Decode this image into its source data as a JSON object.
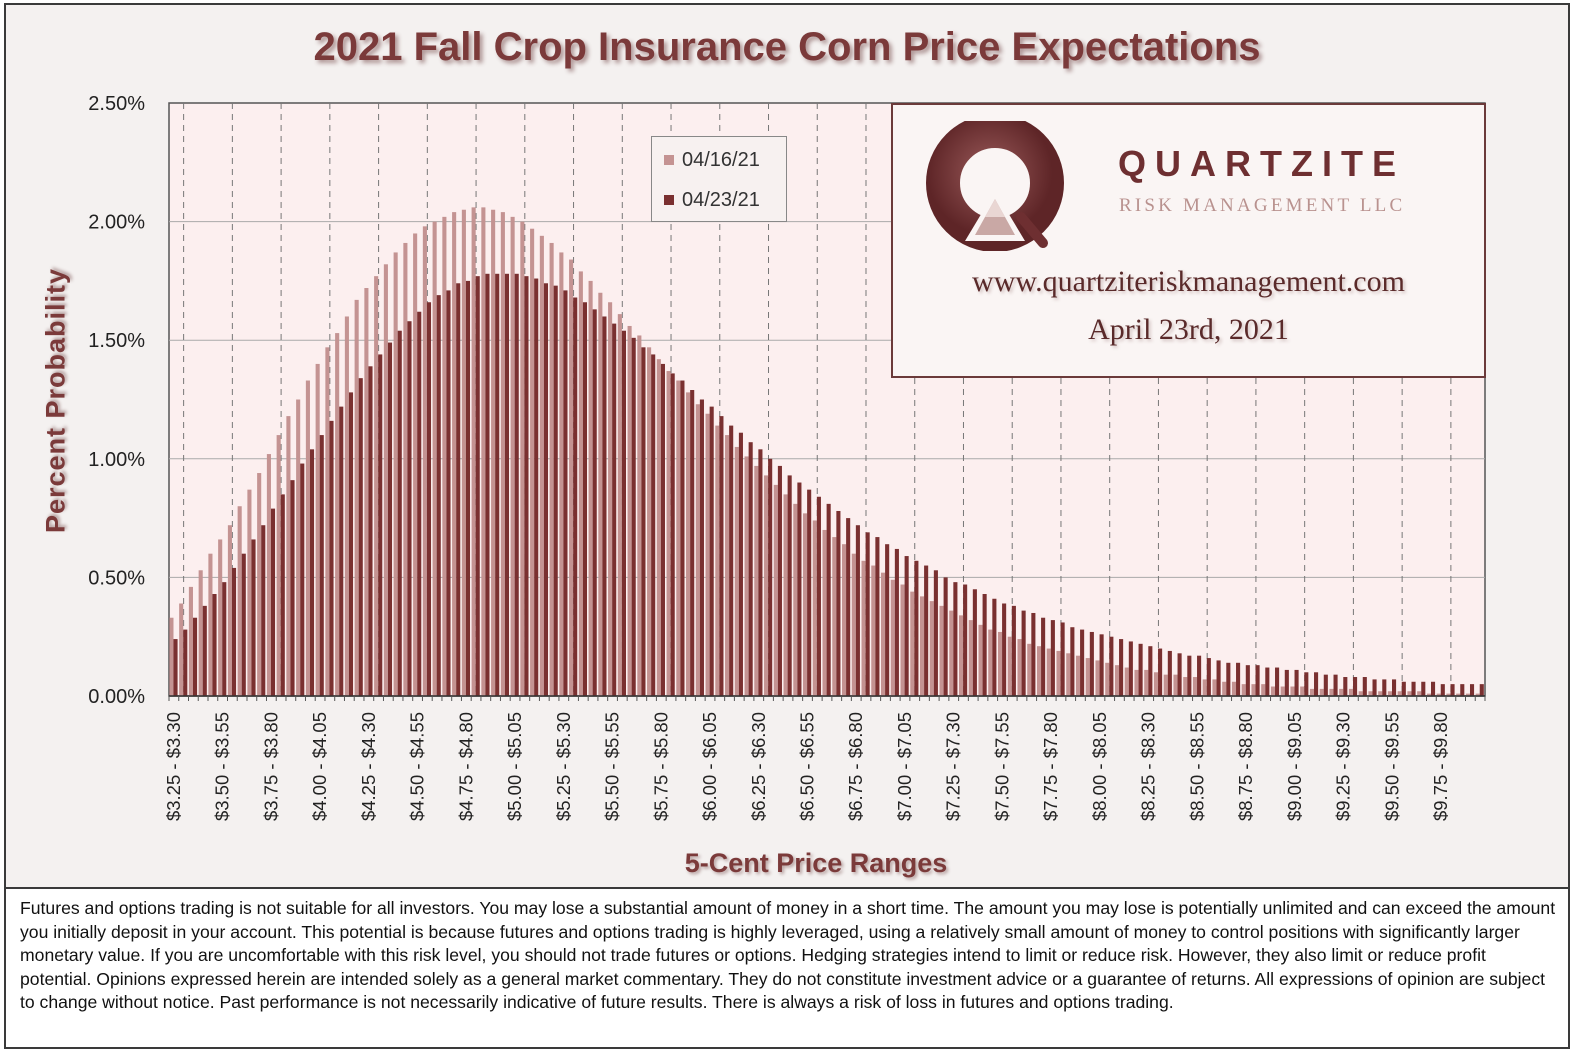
{
  "chart_data": {
    "type": "bar",
    "title": "2021 Fall Crop Insurance Corn Price Expectations",
    "xlabel": "5-Cent Price Ranges",
    "ylabel": "Percent Probability",
    "ylim": [
      0,
      2.5
    ],
    "y_ticks": [
      "0.00%",
      "0.50%",
      "1.00%",
      "1.50%",
      "2.00%",
      "2.50%"
    ],
    "x_tick_labels": [
      "$3.25 - $3.30",
      "$3.50 - $3.55",
      "$3.75 - $3.80",
      "$4.00 - $4.05",
      "$4.25 - $4.30",
      "$4.50 - $4.55",
      "$4.75 - $4.80",
      "$5.00 - $5.05",
      "$5.25 - $5.30",
      "$5.50 - $5.55",
      "$5.75 - $5.80",
      "$6.00 - $6.05",
      "$6.25 - $6.30",
      "$6.50 - $6.55",
      "$6.75 - $6.80",
      "$7.00 - $7.05",
      "$7.25 - $7.30",
      "$7.50 - $7.55",
      "$7.75 - $7.80",
      "$8.00 - $8.05",
      "$8.25 - $8.30",
      "$8.50 - $8.55",
      "$8.75 - $8.80",
      "$9.00 - $9.05",
      "$9.25 - $9.30",
      "$9.50 - $9.55",
      "$9.75 - $9.80"
    ],
    "bins_start": 3.25,
    "bin_width": 0.05,
    "bin_count": 135,
    "grid": true,
    "legend_position": "top-center",
    "series": [
      {
        "name": "04/16/21",
        "color": "#c49392",
        "values": [
          0.33,
          0.39,
          0.46,
          0.53,
          0.6,
          0.66,
          0.72,
          0.8,
          0.87,
          0.94,
          1.02,
          1.1,
          1.18,
          1.25,
          1.33,
          1.4,
          1.47,
          1.53,
          1.6,
          1.67,
          1.72,
          1.77,
          1.82,
          1.87,
          1.91,
          1.95,
          1.98,
          2.0,
          2.02,
          2.04,
          2.05,
          2.06,
          2.06,
          2.05,
          2.04,
          2.02,
          2.0,
          1.97,
          1.94,
          1.91,
          1.87,
          1.84,
          1.79,
          1.75,
          1.7,
          1.66,
          1.61,
          1.56,
          1.52,
          1.47,
          1.42,
          1.37,
          1.33,
          1.28,
          1.23,
          1.19,
          1.14,
          1.1,
          1.05,
          1.01,
          0.97,
          0.93,
          0.89,
          0.85,
          0.81,
          0.77,
          0.74,
          0.7,
          0.67,
          0.64,
          0.6,
          0.57,
          0.55,
          0.52,
          0.49,
          0.47,
          0.44,
          0.42,
          0.4,
          0.38,
          0.36,
          0.34,
          0.32,
          0.3,
          0.28,
          0.27,
          0.25,
          0.24,
          0.22,
          0.21,
          0.2,
          0.19,
          0.18,
          0.17,
          0.16,
          0.15,
          0.14,
          0.13,
          0.12,
          0.11,
          0.11,
          0.1,
          0.09,
          0.09,
          0.08,
          0.08,
          0.07,
          0.07,
          0.06,
          0.06,
          0.05,
          0.05,
          0.05,
          0.04,
          0.04,
          0.04,
          0.04,
          0.03,
          0.03,
          0.03,
          0.03,
          0.03,
          0.02,
          0.02,
          0.02,
          0.02,
          0.02,
          0.02,
          0.02,
          0.01,
          0.01,
          0.01,
          0.01,
          0.01,
          0.01
        ]
      },
      {
        "name": "04/23/21",
        "color": "#7a3030",
        "values": [
          0.24,
          0.28,
          0.33,
          0.38,
          0.43,
          0.48,
          0.54,
          0.6,
          0.66,
          0.72,
          0.79,
          0.85,
          0.91,
          0.98,
          1.04,
          1.1,
          1.16,
          1.22,
          1.28,
          1.34,
          1.39,
          1.44,
          1.49,
          1.54,
          1.58,
          1.62,
          1.66,
          1.69,
          1.71,
          1.74,
          1.75,
          1.77,
          1.78,
          1.78,
          1.78,
          1.78,
          1.77,
          1.76,
          1.74,
          1.73,
          1.71,
          1.68,
          1.66,
          1.63,
          1.6,
          1.57,
          1.54,
          1.51,
          1.47,
          1.44,
          1.4,
          1.36,
          1.33,
          1.29,
          1.25,
          1.22,
          1.18,
          1.14,
          1.11,
          1.07,
          1.04,
          1.0,
          0.97,
          0.93,
          0.9,
          0.87,
          0.84,
          0.81,
          0.78,
          0.75,
          0.72,
          0.69,
          0.67,
          0.64,
          0.62,
          0.59,
          0.57,
          0.55,
          0.53,
          0.5,
          0.48,
          0.47,
          0.45,
          0.43,
          0.41,
          0.39,
          0.38,
          0.36,
          0.35,
          0.33,
          0.32,
          0.31,
          0.29,
          0.28,
          0.27,
          0.26,
          0.25,
          0.24,
          0.23,
          0.22,
          0.21,
          0.2,
          0.19,
          0.18,
          0.17,
          0.17,
          0.16,
          0.15,
          0.14,
          0.14,
          0.13,
          0.13,
          0.12,
          0.12,
          0.11,
          0.11,
          0.1,
          0.1,
          0.09,
          0.09,
          0.08,
          0.08,
          0.08,
          0.07,
          0.07,
          0.07,
          0.06,
          0.06,
          0.06,
          0.06,
          0.05,
          0.05,
          0.05,
          0.05,
          0.05
        ]
      }
    ]
  },
  "logo": {
    "name": "QUARTZITE",
    "subtitle": "RISK MANAGEMENT LLC",
    "url": "www.quartziteriskmanagement.com",
    "date": "April 23rd, 2021",
    "colors": {
      "dark": "#6e2f31",
      "light": "#b9928f"
    }
  },
  "disclaimer": "Futures and options trading is not suitable for all investors. You may lose a substantial amount of money in a short time. The amount you may lose is potentially unlimited and can exceed the amount you initially deposit in your account. This potential is because futures and options trading is highly leveraged, using a relatively small amount of money to control positions with significantly larger monetary value. If you are uncomfortable with this risk level, you should not trade futures or options. Hedging strategies intend to limit or reduce risk. However, they also limit or reduce profit potential. Opinions expressed herein are intended solely as a general market commentary. They do not constitute investment advice or a guarantee of returns. All expressions of opinion are subject to change without notice. Past performance is not necessarily indicative of future results. There is always a risk of loss in futures and options trading."
}
